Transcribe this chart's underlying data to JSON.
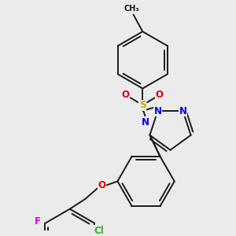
{
  "background_color": "#ebebeb",
  "bond_color": "#1a1a1a",
  "atom_colors": {
    "N": "#0000ee",
    "O": "#dd0000",
    "S": "#bbbb00",
    "Cl": "#33aa33",
    "F": "#dd00dd",
    "C": "#1a1a1a"
  },
  "figsize": [
    3.0,
    3.0
  ],
  "dpi": 100,
  "lw": 1.4
}
